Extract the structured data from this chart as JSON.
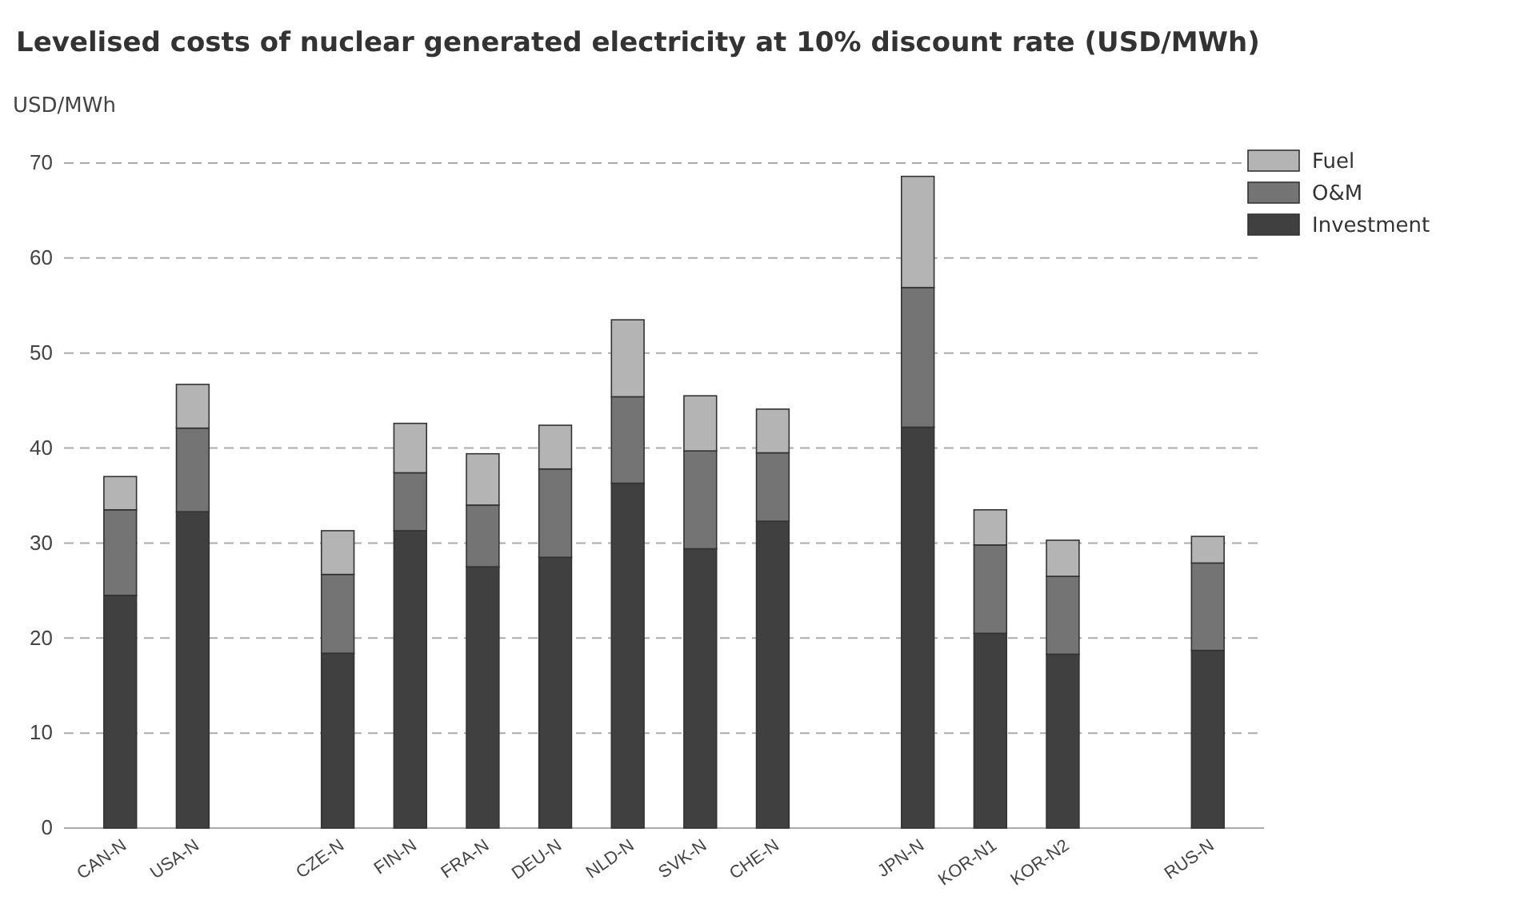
{
  "chart_data": {
    "type": "bar",
    "title": "Levelised costs of nuclear generated electricity at 10% discount rate (USD/MWh)",
    "ylabel": "USD/MWh",
    "categories": [
      "CAN-N",
      "USA-N",
      null,
      "CZE-N",
      "FIN-N",
      "FRA-N",
      "DEU-N",
      "NLD-N",
      "SVK-N",
      "CHE-N",
      null,
      "JPN-N",
      "KOR-N1",
      "KOR-N2",
      null,
      "RUS-N"
    ],
    "stacked": true,
    "series": [
      {
        "name": "Investment",
        "color": "#404040",
        "values": [
          24.5,
          33.3,
          null,
          18.4,
          31.3,
          27.5,
          28.5,
          36.3,
          29.4,
          32.3,
          null,
          42.2,
          20.5,
          18.3,
          null,
          18.7
        ]
      },
      {
        "name": "O&M",
        "color": "#747474",
        "values": [
          9.0,
          8.8,
          null,
          8.3,
          6.1,
          6.5,
          9.3,
          9.1,
          10.3,
          7.2,
          null,
          14.7,
          9.3,
          8.2,
          null,
          9.2
        ]
      },
      {
        "name": "Fuel",
        "color": "#b4b4b4",
        "values": [
          3.5,
          4.6,
          null,
          4.6,
          5.2,
          5.4,
          4.6,
          8.1,
          5.8,
          4.6,
          null,
          11.7,
          3.7,
          3.8,
          null,
          2.8
        ]
      }
    ],
    "ylim": [
      0,
      70
    ],
    "yticks": [
      0,
      10,
      20,
      30,
      40,
      50,
      60,
      70
    ],
    "grid": "y",
    "legend": "top right"
  }
}
